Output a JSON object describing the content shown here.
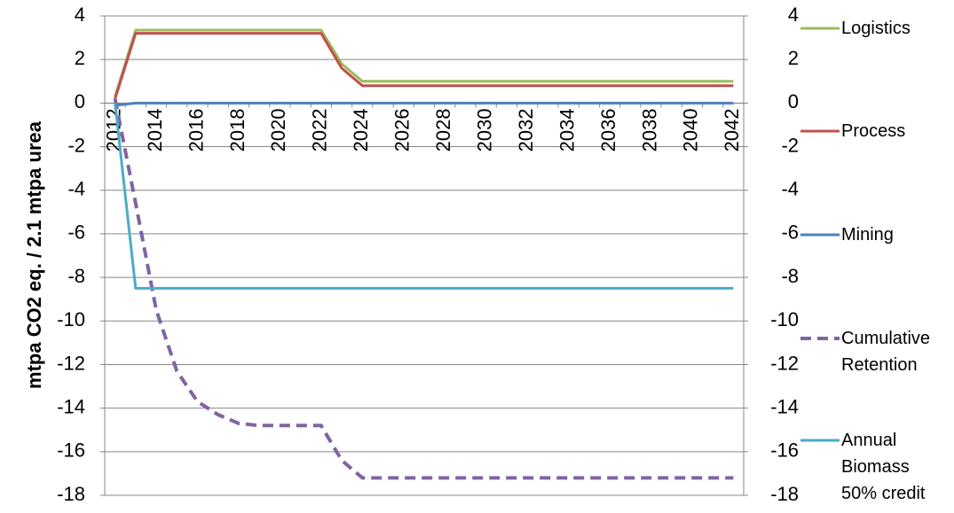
{
  "chart_data": {
    "type": "line",
    "ylabel": "mtpa CO2 eq. / 2.1 mtpa urea",
    "categories": [
      "2012",
      null,
      "2014",
      null,
      "2016",
      null,
      "2018",
      null,
      "2020",
      null,
      "2022",
      null,
      "2024",
      null,
      "2026",
      null,
      "2028",
      null,
      "2030",
      null,
      "2032",
      null,
      "2034",
      null,
      "2036",
      null,
      "2038",
      null,
      "2040",
      null,
      "2042"
    ],
    "ylim": [
      -18,
      4
    ],
    "yticks": [
      -18,
      -16,
      -14,
      -12,
      -10,
      -8,
      -6,
      -4,
      -2,
      0,
      2,
      4
    ],
    "y2lim": [
      -18,
      4
    ],
    "y2ticks": [
      -18,
      -16,
      -14,
      -12,
      -10,
      -8,
      -6,
      -4,
      -2,
      0,
      2,
      4
    ],
    "grid": true,
    "legend": "right",
    "series": [
      {
        "name": "Logistics",
        "color": "#9bbb59",
        "linestyle": "solid",
        "values": [
          0.3,
          3.35,
          3.35,
          3.35,
          3.35,
          3.35,
          3.35,
          3.35,
          3.35,
          3.35,
          3.35,
          1.8,
          1.0,
          1.0,
          1.0,
          1.0,
          1.0,
          1.0,
          1.0,
          1.0,
          1.0,
          1.0,
          1.0,
          1.0,
          1.0,
          1.0,
          1.0,
          1.0,
          1.0,
          1.0,
          1.0
        ]
      },
      {
        "name": "Process",
        "color": "#c0504d",
        "linestyle": "solid",
        "values": [
          0.2,
          3.2,
          3.2,
          3.2,
          3.2,
          3.2,
          3.2,
          3.2,
          3.2,
          3.2,
          3.2,
          1.6,
          0.8,
          0.8,
          0.8,
          0.8,
          0.8,
          0.8,
          0.8,
          0.8,
          0.8,
          0.8,
          0.8,
          0.8,
          0.8,
          0.8,
          0.8,
          0.8,
          0.8,
          0.8,
          0.8
        ]
      },
      {
        "name": "Mining",
        "color": "#4f81bd",
        "linestyle": "solid",
        "values": [
          -0.1,
          0,
          0,
          0,
          0,
          0,
          0,
          0,
          0,
          0,
          0,
          0,
          0,
          0,
          0,
          0,
          0,
          0,
          0,
          0,
          0,
          0,
          0,
          0,
          0,
          0,
          0,
          0,
          0,
          0,
          0
        ]
      },
      {
        "name": "Cumulative Retention",
        "color": "#8064a2",
        "linestyle": "dashed",
        "values": [
          0.2,
          -4.6,
          -9.5,
          -12.3,
          -13.7,
          -14.3,
          -14.7,
          -14.8,
          -14.8,
          -14.8,
          -14.8,
          -16.4,
          -17.2,
          -17.2,
          -17.2,
          -17.2,
          -17.2,
          -17.2,
          -17.2,
          -17.2,
          -17.2,
          -17.2,
          -17.2,
          -17.2,
          -17.2,
          -17.2,
          -17.2,
          -17.2,
          -17.2,
          -17.2,
          -17.2
        ]
      },
      {
        "name": "Annual Biomass 50% credit",
        "color": "#4bacc6",
        "linestyle": "solid",
        "values": [
          0,
          -8.5,
          -8.5,
          -8.5,
          -8.5,
          -8.5,
          -8.5,
          -8.5,
          -8.5,
          -8.5,
          -8.5,
          -8.5,
          -8.5,
          -8.5,
          -8.5,
          -8.5,
          -8.5,
          -8.5,
          -8.5,
          -8.5,
          -8.5,
          -8.5,
          -8.5,
          -8.5,
          -8.5,
          -8.5,
          -8.5,
          -8.5,
          -8.5,
          -8.5,
          -8.5
        ]
      }
    ]
  }
}
